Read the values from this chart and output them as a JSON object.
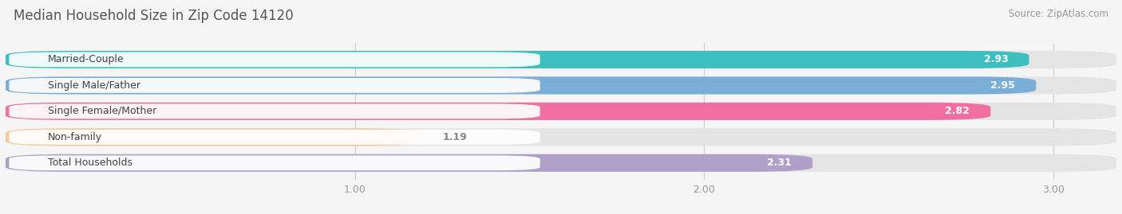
{
  "title": "Median Household Size in Zip Code 14120",
  "source": "Source: ZipAtlas.com",
  "categories": [
    "Married-Couple",
    "Single Male/Father",
    "Single Female/Mother",
    "Non-family",
    "Total Households"
  ],
  "values": [
    2.93,
    2.95,
    2.82,
    1.19,
    2.31
  ],
  "bar_colors": [
    "#3dbfbf",
    "#7baed6",
    "#f06fa0",
    "#f5c9a0",
    "#b09fc8"
  ],
  "xlim_left": 0.0,
  "xlim_right": 3.18,
  "xticks": [
    1.0,
    2.0,
    3.0
  ],
  "title_fontsize": 12,
  "source_fontsize": 8.5,
  "value_fontsize": 9,
  "label_fontsize": 9,
  "tick_fontsize": 9,
  "bar_height": 0.68,
  "background_color": "#f5f5f5",
  "bar_bg_color": "#e4e4e4"
}
